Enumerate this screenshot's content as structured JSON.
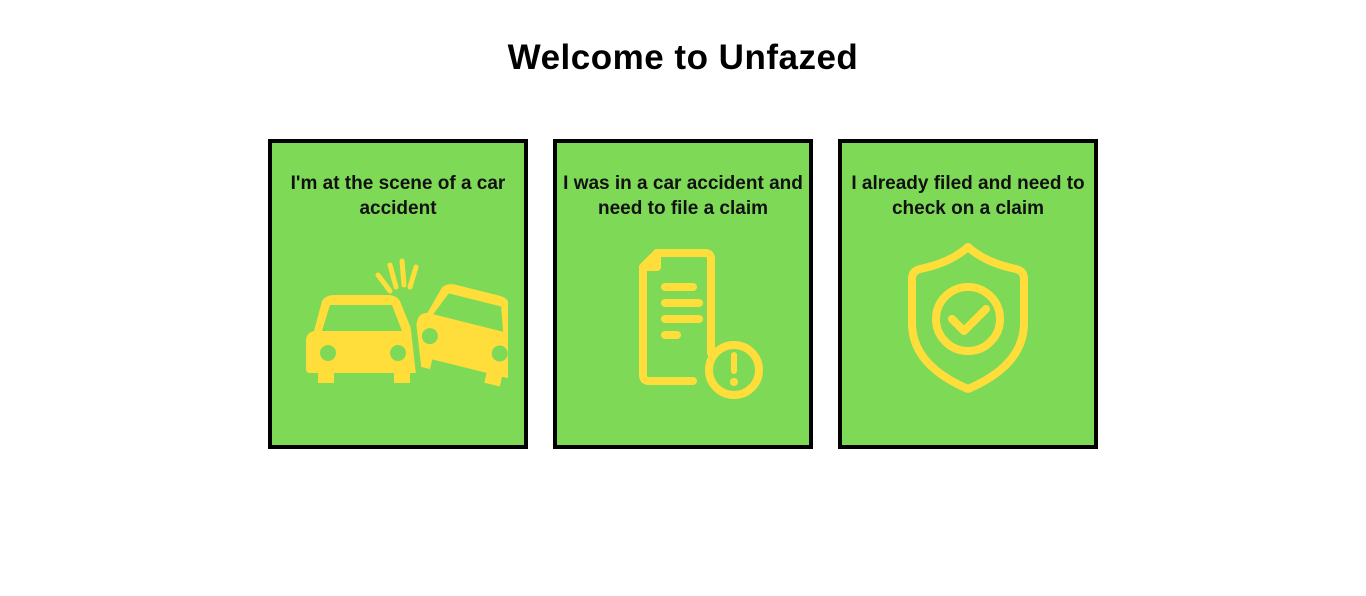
{
  "page": {
    "title": "Welcome to Unfazed"
  },
  "colors": {
    "card_background": "#7ED957",
    "icon_color": "#FFDE3B",
    "border": "#000000"
  },
  "cards": [
    {
      "label": "I'm at the scene of a car accident",
      "icon": "car-crash-icon"
    },
    {
      "label": "I was in a car accident and need to file a claim",
      "icon": "document-alert-icon"
    },
    {
      "label": "I already filed and need to check on a claim",
      "icon": "shield-check-icon"
    }
  ]
}
